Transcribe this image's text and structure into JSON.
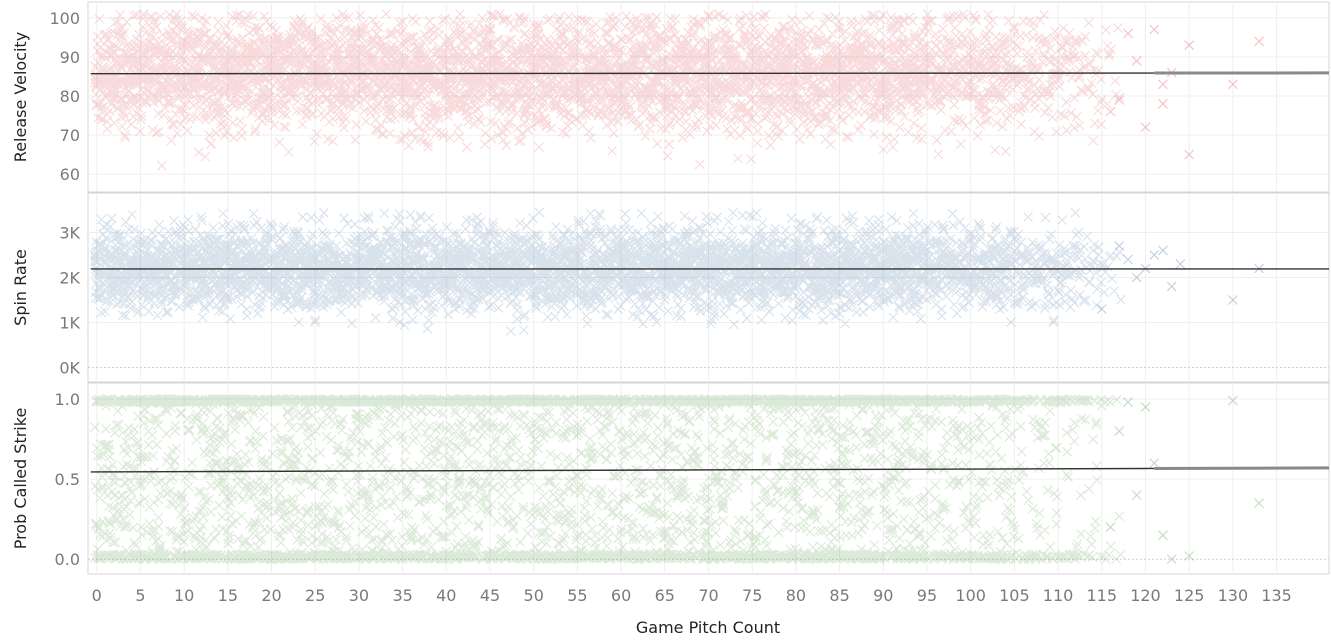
{
  "chart_data": {
    "type": "scatter",
    "x_label": "Game Pitch Count",
    "x_range": [
      -1,
      141
    ],
    "x_ticks": [
      0,
      5,
      10,
      15,
      20,
      25,
      30,
      35,
      40,
      45,
      50,
      55,
      60,
      65,
      70,
      75,
      80,
      85,
      90,
      95,
      100,
      105,
      110,
      115,
      120,
      125,
      130,
      135
    ],
    "x_tick_labels": [
      "0",
      "5",
      "10",
      "15",
      "20",
      "25",
      "30",
      "35",
      "40",
      "45",
      "50",
      "55",
      "60",
      "65",
      "70",
      "75",
      "80",
      "85",
      "90",
      "95",
      "100",
      "105",
      "110",
      "115",
      "120",
      "125",
      "130",
      "135"
    ],
    "marker": "x",
    "panels": [
      {
        "name": "velocity",
        "y_label": "Release Velocity",
        "color": "#e15759",
        "y_range": [
          58,
          102
        ],
        "y_ticks": [
          60,
          70,
          80,
          90,
          100
        ],
        "y_tick_labels": [
          "60",
          "70",
          "80",
          "90",
          "100"
        ],
        "trend": [
          [
            0,
            85.7
          ],
          [
            141,
            85.9
          ]
        ],
        "band": {
          "center": 85.5,
          "sd": 7,
          "lo": 62,
          "hi": 101
        },
        "sparse_points": [
          [
            118,
            96
          ],
          [
            119,
            89
          ],
          [
            121,
            97
          ],
          [
            122,
            83
          ],
          [
            122,
            78
          ],
          [
            123,
            86
          ],
          [
            125,
            93
          ],
          [
            130,
            83
          ],
          [
            133,
            94
          ],
          [
            125,
            65
          ],
          [
            120,
            72
          ],
          [
            117,
            79
          ],
          [
            116,
            76
          ]
        ]
      },
      {
        "name": "spin",
        "y_label": "Spin Rate",
        "color": "#4e79a7",
        "y_range": [
          -100,
          3700
        ],
        "y_ticks": [
          0,
          1000,
          2000,
          3000
        ],
        "y_tick_labels": [
          "0K",
          "1K",
          "2K",
          "3K"
        ],
        "trend": [
          [
            0,
            2190
          ],
          [
            141,
            2190
          ]
        ],
        "band": {
          "center": 2200,
          "sd": 450,
          "lo": 300,
          "hi": 3450
        },
        "sparse_points": [
          [
            118,
            2400
          ],
          [
            119,
            2000
          ],
          [
            120,
            2200
          ],
          [
            122,
            2600
          ],
          [
            123,
            1800
          ],
          [
            124,
            2300
          ],
          [
            130,
            1500
          ],
          [
            133,
            2200
          ],
          [
            115,
            1300
          ],
          [
            117,
            2700
          ],
          [
            121,
            2500
          ]
        ]
      },
      {
        "name": "strike",
        "y_label": "Prob Called Strike",
        "color": "#59a14f",
        "y_range": [
          -0.03,
          1.05
        ],
        "y_ticks": [
          0.0,
          0.5,
          1.0
        ],
        "y_tick_labels": [
          "0.0",
          "0.5",
          "1.0"
        ],
        "trend": [
          [
            0,
            0.545
          ],
          [
            141,
            0.57
          ]
        ],
        "band": {
          "center": 0.5,
          "sd": 0.35,
          "lo": 0.0,
          "hi": 1.0
        },
        "sparse_points": [
          [
            118,
            0.98
          ],
          [
            120,
            0.95
          ],
          [
            121,
            0.6
          ],
          [
            122,
            0.15
          ],
          [
            123,
            0.0
          ],
          [
            125,
            0.02
          ],
          [
            130,
            0.99
          ],
          [
            133,
            0.35
          ],
          [
            119,
            0.4
          ],
          [
            117,
            0.8
          ],
          [
            116,
            0.2
          ]
        ]
      }
    ]
  }
}
